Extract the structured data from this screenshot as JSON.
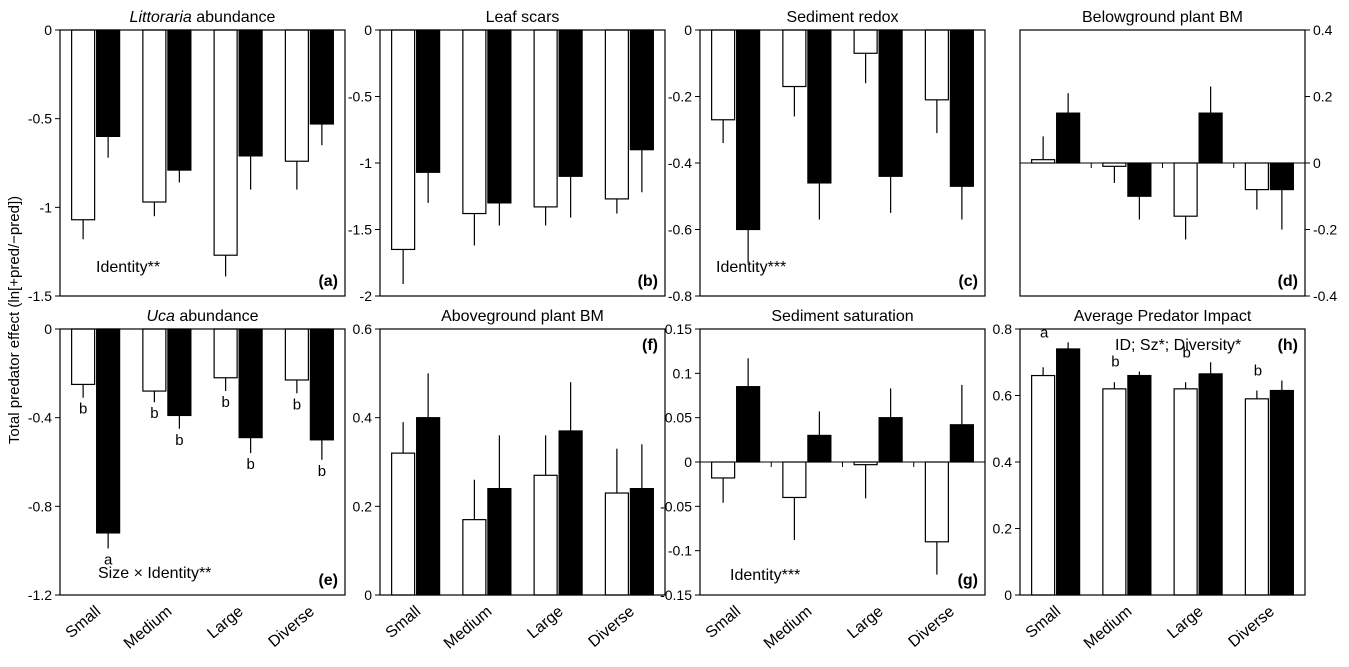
{
  "figure": {
    "ylabel": "Total predator effect (ln[+pred/−pred])",
    "categories": [
      "Small",
      "Medium",
      "Large",
      "Diverse"
    ],
    "bar_colors": [
      "#ffffff",
      "#000000"
    ],
    "edge_color": "#000000"
  },
  "chart_data": [
    {
      "type": "bar",
      "letter": "(a)",
      "title_parts": [
        {
          "text": "Littoraria",
          "italic": true
        },
        {
          "text": " abundance",
          "italic": false
        }
      ],
      "categories": [
        "Small",
        "Medium",
        "Large",
        "Diverse"
      ],
      "ylim": [
        -1.5,
        0
      ],
      "yticks": [
        0,
        -0.5,
        -1,
        -1.5
      ],
      "tick_labels": [
        "0",
        "-0.5",
        "-1",
        "-1.5"
      ],
      "series": [
        {
          "values": [
            -1.07,
            -0.97,
            -1.27,
            -0.74
          ],
          "errors": [
            0.11,
            0.08,
            0.12,
            0.16
          ]
        },
        {
          "values": [
            -0.6,
            -0.79,
            -0.71,
            -0.53
          ],
          "errors": [
            0.12,
            0.07,
            0.19,
            0.12
          ]
        }
      ],
      "annotation": "Identity**"
    },
    {
      "type": "bar",
      "letter": "(b)",
      "title_parts": [
        {
          "text": "Leaf scars",
          "italic": false
        }
      ],
      "categories": [
        "Small",
        "Medium",
        "Large",
        "Diverse"
      ],
      "ylim": [
        -2,
        0
      ],
      "yticks": [
        0,
        -0.5,
        -1,
        -1.5,
        -2
      ],
      "tick_labels": [
        "0",
        "-0.5",
        "-1",
        "-1.5",
        "-2"
      ],
      "series": [
        {
          "values": [
            -1.65,
            -1.38,
            -1.33,
            -1.27
          ],
          "errors": [
            0.26,
            0.24,
            0.14,
            0.11
          ]
        },
        {
          "values": [
            -1.07,
            -1.3,
            -1.1,
            -0.9
          ],
          "errors": [
            0.23,
            0.17,
            0.31,
            0.32
          ]
        }
      ],
      "annotation": ""
    },
    {
      "type": "bar",
      "letter": "(c)",
      "title_parts": [
        {
          "text": "Sediment redox",
          "italic": false
        }
      ],
      "categories": [
        "Small",
        "Medium",
        "Large",
        "Diverse"
      ],
      "ylim": [
        -0.8,
        0
      ],
      "yticks": [
        0,
        -0.2,
        -0.4,
        -0.6,
        -0.8
      ],
      "tick_labels": [
        "0",
        "-0.2",
        "-0.4",
        "-0.6",
        "-0.8"
      ],
      "series": [
        {
          "values": [
            -0.27,
            -0.17,
            -0.07,
            -0.21
          ],
          "errors": [
            0.07,
            0.09,
            0.09,
            0.1
          ]
        },
        {
          "values": [
            -0.6,
            -0.46,
            -0.44,
            -0.47
          ],
          "errors": [
            0.1,
            0.11,
            0.11,
            0.1
          ]
        }
      ],
      "annotation": "Identity***"
    },
    {
      "type": "bar",
      "letter": "(d)",
      "title_parts": [
        {
          "text": "Belowground plant BM",
          "italic": false
        }
      ],
      "categories": [
        "Small",
        "Medium",
        "Large",
        "Diverse"
      ],
      "ylim": [
        -0.4,
        0.4
      ],
      "yticks": [
        0.4,
        0.2,
        0,
        -0.2,
        -0.4
      ],
      "tick_labels": [
        "0.4",
        "0.2",
        "0",
        "-0.2",
        "-0.4"
      ],
      "series": [
        {
          "values": [
            0.01,
            -0.01,
            -0.16,
            -0.08
          ],
          "errors": [
            0.07,
            0.05,
            0.07,
            0.06
          ]
        },
        {
          "values": [
            0.15,
            -0.1,
            0.15,
            -0.08
          ],
          "errors": [
            0.06,
            0.07,
            0.08,
            0.12
          ]
        }
      ],
      "annotation": ""
    },
    {
      "type": "bar",
      "letter": "(e)",
      "title_parts": [
        {
          "text": "Uca",
          "italic": true
        },
        {
          "text": " abundance",
          "italic": false
        }
      ],
      "categories": [
        "Small",
        "Medium",
        "Large",
        "Diverse"
      ],
      "ylim": [
        -1.2,
        0
      ],
      "yticks": [
        0,
        -0.4,
        -0.8,
        -1.2
      ],
      "tick_labels": [
        "0",
        "-0.4",
        "-0.8",
        "-1.2"
      ],
      "series": [
        {
          "values": [
            -0.25,
            -0.28,
            -0.22,
            -0.23
          ],
          "errors": [
            0.06,
            0.05,
            0.06,
            0.06
          ],
          "labels": [
            "b",
            "b",
            "b",
            "b"
          ]
        },
        {
          "values": [
            -0.92,
            -0.39,
            -0.49,
            -0.5
          ],
          "errors": [
            0.07,
            0.06,
            0.07,
            0.09
          ],
          "labels": [
            "a",
            "b",
            "b",
            "b"
          ]
        }
      ],
      "annotation": "Size × Identity**"
    },
    {
      "type": "bar",
      "letter": "(f)",
      "title_parts": [
        {
          "text": "Aboveground plant BM",
          "italic": false
        }
      ],
      "categories": [
        "Small",
        "Medium",
        "Large",
        "Diverse"
      ],
      "ylim": [
        0,
        0.6
      ],
      "yticks": [
        0,
        0.2,
        0.4,
        0.6
      ],
      "tick_labels": [
        "0",
        "0.2",
        "0.4",
        "0.6"
      ],
      "series": [
        {
          "values": [
            0.32,
            0.17,
            0.27,
            0.23
          ],
          "errors": [
            0.07,
            0.09,
            0.09,
            0.1
          ]
        },
        {
          "values": [
            0.4,
            0.24,
            0.37,
            0.24
          ],
          "errors": [
            0.1,
            0.12,
            0.11,
            0.1
          ]
        }
      ],
      "annotation": ""
    },
    {
      "type": "bar",
      "letter": "(g)",
      "title_parts": [
        {
          "text": "Sediment saturation",
          "italic": false
        }
      ],
      "categories": [
        "Small",
        "Medium",
        "Large",
        "Diverse"
      ],
      "ylim": [
        -0.15,
        0.15
      ],
      "yticks": [
        0.15,
        0.1,
        0.05,
        0,
        -0.05,
        -0.1,
        -0.15
      ],
      "tick_labels": [
        "0.15",
        "0.1",
        "0.05",
        "0",
        "-0.05",
        "-0.1",
        "-0.15"
      ],
      "series": [
        {
          "values": [
            -0.018,
            -0.04,
            -0.003,
            -0.09
          ],
          "errors": [
            0.028,
            0.048,
            0.038,
            0.037
          ]
        },
        {
          "values": [
            0.085,
            0.03,
            0.05,
            0.042
          ],
          "errors": [
            0.032,
            0.027,
            0.033,
            0.045
          ]
        }
      ],
      "annotation": "Identity***"
    },
    {
      "type": "bar",
      "letter": "(h)",
      "title_parts": [
        {
          "text": "Average Predator Impact",
          "italic": false
        }
      ],
      "categories": [
        "Small",
        "Medium",
        "Large",
        "Diverse"
      ],
      "ylim": [
        0,
        0.8
      ],
      "yticks": [
        0,
        0.2,
        0.4,
        0.6,
        0.8
      ],
      "tick_labels": [
        "0",
        "0.2",
        "0.4",
        "0.6",
        "0.8"
      ],
      "series": [
        {
          "values": [
            0.66,
            0.62,
            0.62,
            0.59
          ],
          "errors": [
            0.025,
            0.02,
            0.02,
            0.025
          ]
        },
        {
          "values": [
            0.74,
            0.66,
            0.665,
            0.615
          ],
          "errors": [
            0.02,
            0.012,
            0.035,
            0.03
          ]
        }
      ],
      "group_labels": [
        "a",
        "b",
        "b",
        "b"
      ],
      "annotation": "ID; Sz*; Diversity*"
    }
  ]
}
